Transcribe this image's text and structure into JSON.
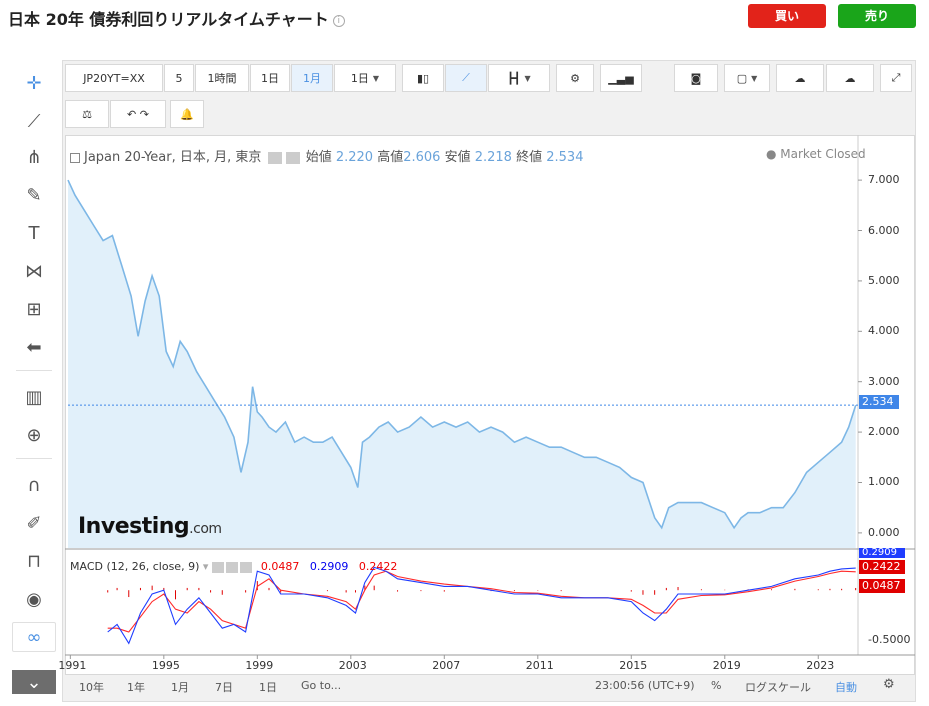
{
  "page": {
    "title": "日本 20年 債券利回りリアルタイムチャート"
  },
  "actions": {
    "buy": "買い",
    "sell": "売り"
  },
  "toolbar": {
    "symbol": "JP20YT=XX",
    "interval_5": "5",
    "interval_1h": "1時間",
    "interval_1d": "1日",
    "interval_1m": "1月",
    "interval_select": "1日"
  },
  "legend": {
    "name": "Japan 20-Year, 日本, 月, 東京",
    "open_label": "始値",
    "open": "2.220",
    "high_label": "高値",
    "high": "2.606",
    "low_label": "安値",
    "low": "2.218",
    "close_label": "終値",
    "close": "2.534",
    "market_status": "● Market Closed"
  },
  "logo": {
    "main": "Investing",
    "suffix": ".com"
  },
  "macd": {
    "label": "MACD (12, 26, close, 9)",
    "hist": "0.0487",
    "macd": "0.2909",
    "signal": "0.2422",
    "axis_label": "-0.5000",
    "tag_macd": "0.2909",
    "tag_signal": "0.2422",
    "tag_hist": "0.0487"
  },
  "bottom": {
    "r10y": "10年",
    "r1y": "1年",
    "r1m": "1月",
    "r7d": "7日",
    "r1d": "1日",
    "goto": "Go to...",
    "time": "23:00:56 (UTC+9)",
    "percent": "%",
    "log": "ログスケール",
    "auto": "自動"
  },
  "colors": {
    "line": "#7db7e6",
    "fill": "#e1f0fa",
    "macd": "#1f3dff",
    "signal": "#ff2a2a",
    "hist": "#e00000",
    "price_tag": "#3f86e8"
  },
  "chart_data": {
    "type": "area",
    "title": "Japan 20-Year, 日本, 月, 東京",
    "xlabel": "",
    "ylabel": "",
    "x_ticks": [
      "1991",
      "1995",
      "1999",
      "2003",
      "2007",
      "2011",
      "2015",
      "2019",
      "2023"
    ],
    "y_ticks": [
      "7.000",
      "6.000",
      "5.000",
      "4.000",
      "3.000",
      "2.000",
      "1.000",
      "0.000"
    ],
    "ylim": [
      -0.3,
      7.3
    ],
    "xlim": [
      1990.9,
      2024.7
    ],
    "last_price": "2.534",
    "series": [
      {
        "name": "",
        "x": [
          1990.9,
          1991.2,
          1991.6,
          1992.0,
          1992.4,
          1992.8,
          1993.2,
          1993.6,
          1993.9,
          1994.2,
          1994.5,
          1994.8,
          1995.1,
          1995.4,
          1995.7,
          1996.0,
          1996.4,
          1996.8,
          1997.2,
          1997.6,
          1998.0,
          1998.3,
          1998.6,
          1998.8,
          1999.0,
          1999.2,
          1999.5,
          1999.8,
          2000.2,
          2000.6,
          2001.0,
          2001.4,
          2001.8,
          2002.2,
          2002.6,
          2003.0,
          2003.3,
          2003.5,
          2003.8,
          2004.2,
          2004.6,
          2005.0,
          2005.5,
          2006.0,
          2006.5,
          2007.0,
          2007.5,
          2008.0,
          2008.5,
          2009.0,
          2009.5,
          2010.0,
          2010.5,
          2011.0,
          2011.5,
          2012.0,
          2012.5,
          2013.0,
          2013.5,
          2014.0,
          2014.5,
          2015.0,
          2015.5,
          2016.0,
          2016.3,
          2016.6,
          2017.0,
          2017.5,
          2018.0,
          2018.5,
          2019.0,
          2019.4,
          2019.7,
          2020.0,
          2020.5,
          2021.0,
          2021.5,
          2022.0,
          2022.5,
          2023.0,
          2023.5,
          2024.0,
          2024.3,
          2024.6
        ],
        "y": [
          7.0,
          6.7,
          6.4,
          6.1,
          5.8,
          5.9,
          5.3,
          4.7,
          3.9,
          4.6,
          5.1,
          4.7,
          3.6,
          3.3,
          3.8,
          3.6,
          3.2,
          2.9,
          2.6,
          2.3,
          1.9,
          1.2,
          1.8,
          2.9,
          2.4,
          2.3,
          2.1,
          2.0,
          2.2,
          1.8,
          1.9,
          1.8,
          1.8,
          1.9,
          1.6,
          1.3,
          0.9,
          1.8,
          1.9,
          2.1,
          2.2,
          2.0,
          2.1,
          2.3,
          2.1,
          2.2,
          2.1,
          2.2,
          2.0,
          2.1,
          2.0,
          1.8,
          1.9,
          1.8,
          1.7,
          1.7,
          1.6,
          1.5,
          1.5,
          1.4,
          1.3,
          1.1,
          1.0,
          0.3,
          0.1,
          0.5,
          0.6,
          0.6,
          0.6,
          0.5,
          0.4,
          0.1,
          0.3,
          0.4,
          0.4,
          0.5,
          0.5,
          0.8,
          1.2,
          1.4,
          1.6,
          1.8,
          2.1,
          2.534
        ]
      }
    ],
    "macd_panel": {
      "ylim": [
        -0.8,
        0.45
      ],
      "y_ticks": [
        "-0.5000"
      ],
      "x": [
        1992.6,
        1993.0,
        1993.5,
        1994.0,
        1994.5,
        1995.0,
        1995.5,
        1996.0,
        1996.5,
        1997.0,
        1997.5,
        1998.0,
        1998.5,
        1999.0,
        1999.5,
        2000.0,
        2001.0,
        2002.0,
        2002.8,
        2003.2,
        2003.6,
        2004.0,
        2004.5,
        2005.0,
        2006.0,
        2007.0,
        2008.0,
        2009.0,
        2010.0,
        2011.0,
        2012.0,
        2013.0,
        2014.0,
        2015.0,
        2015.5,
        2016.0,
        2016.5,
        2017.0,
        2018.0,
        2019.0,
        2020.0,
        2021.0,
        2022.0,
        2023.0,
        2023.5,
        2024.0,
        2024.6
      ],
      "macd": [
        -0.55,
        -0.45,
        -0.7,
        -0.3,
        -0.05,
        0.0,
        -0.45,
        -0.25,
        -0.1,
        -0.3,
        -0.5,
        -0.45,
        -0.55,
        0.25,
        0.2,
        -0.05,
        -0.05,
        -0.1,
        -0.2,
        -0.3,
        0.1,
        0.3,
        0.25,
        0.15,
        0.1,
        0.05,
        0.05,
        0.0,
        -0.05,
        -0.05,
        -0.1,
        -0.1,
        -0.1,
        -0.15,
        -0.3,
        -0.4,
        -0.25,
        -0.05,
        -0.05,
        -0.05,
        0.0,
        0.05,
        0.15,
        0.2,
        0.25,
        0.28,
        0.2909
      ],
      "signal": [
        -0.5,
        -0.5,
        -0.55,
        -0.35,
        -0.15,
        -0.05,
        -0.25,
        -0.3,
        -0.15,
        -0.25,
        -0.4,
        -0.45,
        -0.5,
        0.05,
        0.15,
        0.0,
        -0.05,
        -0.08,
        -0.15,
        -0.25,
        0.0,
        0.2,
        0.25,
        0.18,
        0.12,
        0.08,
        0.05,
        0.02,
        -0.03,
        -0.04,
        -0.08,
        -0.1,
        -0.1,
        -0.12,
        -0.2,
        -0.3,
        -0.3,
        -0.12,
        -0.07,
        -0.06,
        -0.02,
        0.03,
        0.12,
        0.18,
        0.22,
        0.25,
        0.2422
      ],
      "hist": [
        0.0487
      ]
    }
  }
}
